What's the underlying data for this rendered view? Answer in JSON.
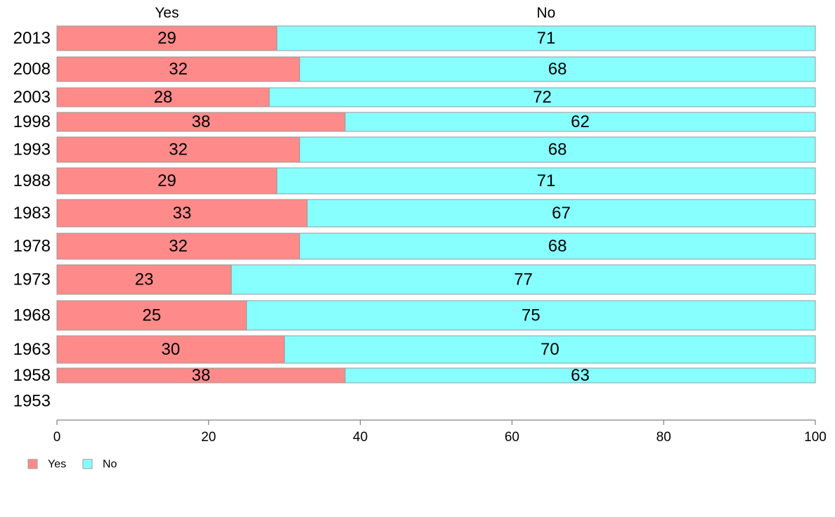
{
  "chart_data": {
    "type": "bar",
    "orientation": "horizontal",
    "stacked": true,
    "categories": [
      "2013",
      "2008",
      "2003",
      "1998",
      "1993",
      "1988",
      "1983",
      "1978",
      "1973",
      "1968",
      "1963",
      "1958",
      "1953"
    ],
    "series": [
      {
        "name": "Yes",
        "color": "#ff8a8a",
        "values": [
          29,
          32,
          28,
          38,
          32,
          29,
          33,
          32,
          23,
          25,
          30,
          38,
          null
        ],
        "value_labels": [
          "29",
          "32",
          "28",
          "38",
          "32",
          "29",
          "33",
          "32",
          "23",
          "25",
          "30",
          "38",
          ""
        ]
      },
      {
        "name": "No",
        "color": "#88ffff",
        "values": [
          71,
          68,
          72,
          62,
          68,
          71,
          67,
          68,
          77,
          75,
          70,
          63,
          null
        ],
        "value_labels": [
          "71",
          "68",
          "72",
          "62",
          "68",
          "71",
          "67",
          "68",
          "77",
          "75",
          "70",
          "63",
          ""
        ]
      }
    ],
    "column_headers": [
      "Yes",
      "No"
    ],
    "xlim": [
      0,
      100
    ],
    "xticks": [
      "0",
      "20",
      "40",
      "60",
      "80",
      "100"
    ],
    "legend_position": "bottom-left",
    "grid": false
  }
}
